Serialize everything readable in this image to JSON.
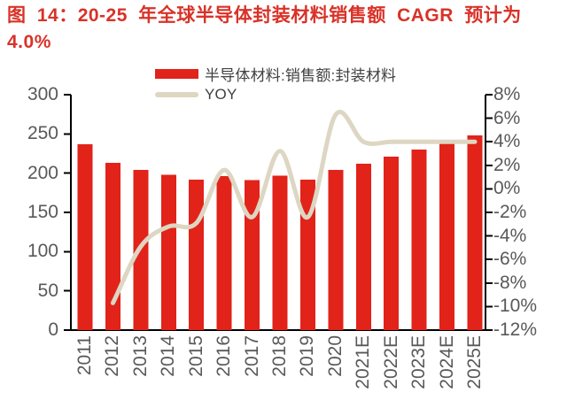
{
  "title": {
    "text": "图 14：20-25 年全球半导体封装材料销售额 CAGR 预计为\n4.0%"
  },
  "legend": [
    {
      "label": "半导体材料:销售额:封装材料",
      "marker": "bar-swatch"
    },
    {
      "label": "YOY",
      "marker": "line-swatch"
    }
  ],
  "chart_data": {
    "type": "bar+line",
    "title": "图 14：20-25 年全球半导体封装材料销售额 CAGR 预计为 4.0%",
    "categories": [
      "2011",
      "2012",
      "2013",
      "2014",
      "2015",
      "2016",
      "2017",
      "2018",
      "2019",
      "2020",
      "2021E",
      "2022E",
      "2023E",
      "2024E",
      "2025E"
    ],
    "series": [
      {
        "name": "半导体材料:销售额:封装材料",
        "chart_type": "bar",
        "y_axis": "left",
        "values": [
          237,
          213,
          204,
          198,
          192,
          196,
          191,
          197,
          192,
          204,
          212,
          221,
          230,
          240,
          248
        ]
      },
      {
        "name": "YOY",
        "chart_type": "line",
        "y_axis": "right",
        "values_percent": [
          null,
          -9.7,
          -4.9,
          -3.2,
          -2.9,
          1.6,
          -2.4,
          3.2,
          -2.4,
          6.3,
          4.0,
          4.0,
          4.0,
          4.0,
          4.0
        ]
      }
    ],
    "left_axis": {
      "range": [
        0,
        300
      ],
      "tick_step": 50,
      "tick_labels_top_to_bottom": [
        "300",
        "250",
        "200",
        "150",
        "100",
        "50",
        "0"
      ]
    },
    "right_axis": {
      "range": [
        -12,
        8
      ],
      "tick_step": 2,
      "tick_labels_top_to_bottom": [
        "8%",
        "6%",
        "4%",
        "2%",
        "0%",
        "-2%",
        "-4%",
        "-6%",
        "-8%",
        "-10%",
        "-12%"
      ]
    },
    "grid": false,
    "legend_position": "top-center"
  },
  "colors": {
    "bar": "#e1231a",
    "line": "#ddd6c2",
    "title": "#d93228",
    "axis": "#000000",
    "tick_label": "#595959",
    "legend_text": "#404040",
    "background": "#ffffff"
  }
}
